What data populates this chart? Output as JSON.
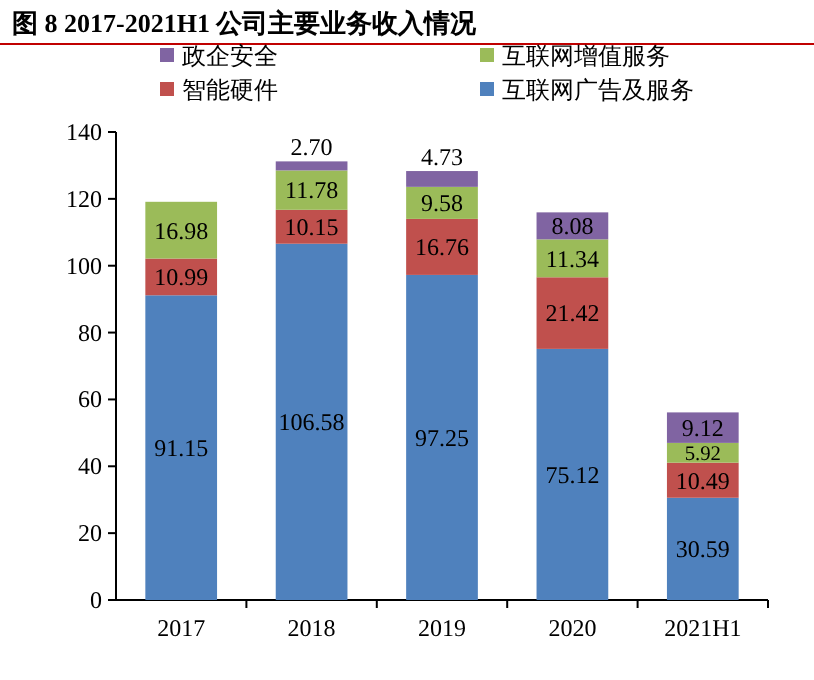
{
  "chart_data": {
    "type": "bar",
    "title": "图 8 2017-2021H1 公司主要业务收入情况",
    "stacked": true,
    "legend": "top",
    "categories": [
      "2017",
      "2018",
      "2019",
      "2020",
      "2021H1"
    ],
    "ylim": [
      0,
      140
    ],
    "yticks": [
      0,
      20,
      40,
      60,
      80,
      100,
      120,
      140
    ],
    "series": [
      {
        "name": "互联网广告及服务",
        "color": "#4f81bd",
        "values": [
          91.15,
          106.58,
          97.25,
          75.12,
          30.59
        ],
        "value_labels": [
          "91.15",
          "106.58",
          "97.25",
          "75.12",
          "30.59"
        ]
      },
      {
        "name": "智能硬件",
        "color": "#c0504d",
        "values": [
          10.99,
          10.15,
          16.76,
          21.42,
          10.49
        ],
        "value_labels": [
          "10.99",
          "10.15",
          "16.76",
          "21.42",
          "10.49"
        ]
      },
      {
        "name": "互联网增值服务",
        "color": "#9bbb59",
        "values": [
          16.98,
          11.78,
          9.58,
          11.34,
          5.92
        ],
        "value_labels": [
          "16.98",
          "11.78",
          "9.58",
          "11.34",
          "5.92"
        ]
      },
      {
        "name": "政企安全",
        "color": "#8064a2",
        "values": [
          null,
          2.7,
          4.73,
          8.08,
          9.12
        ],
        "value_labels": [
          null,
          "2.70",
          "4.73",
          "8.08",
          "9.12"
        ]
      }
    ]
  }
}
